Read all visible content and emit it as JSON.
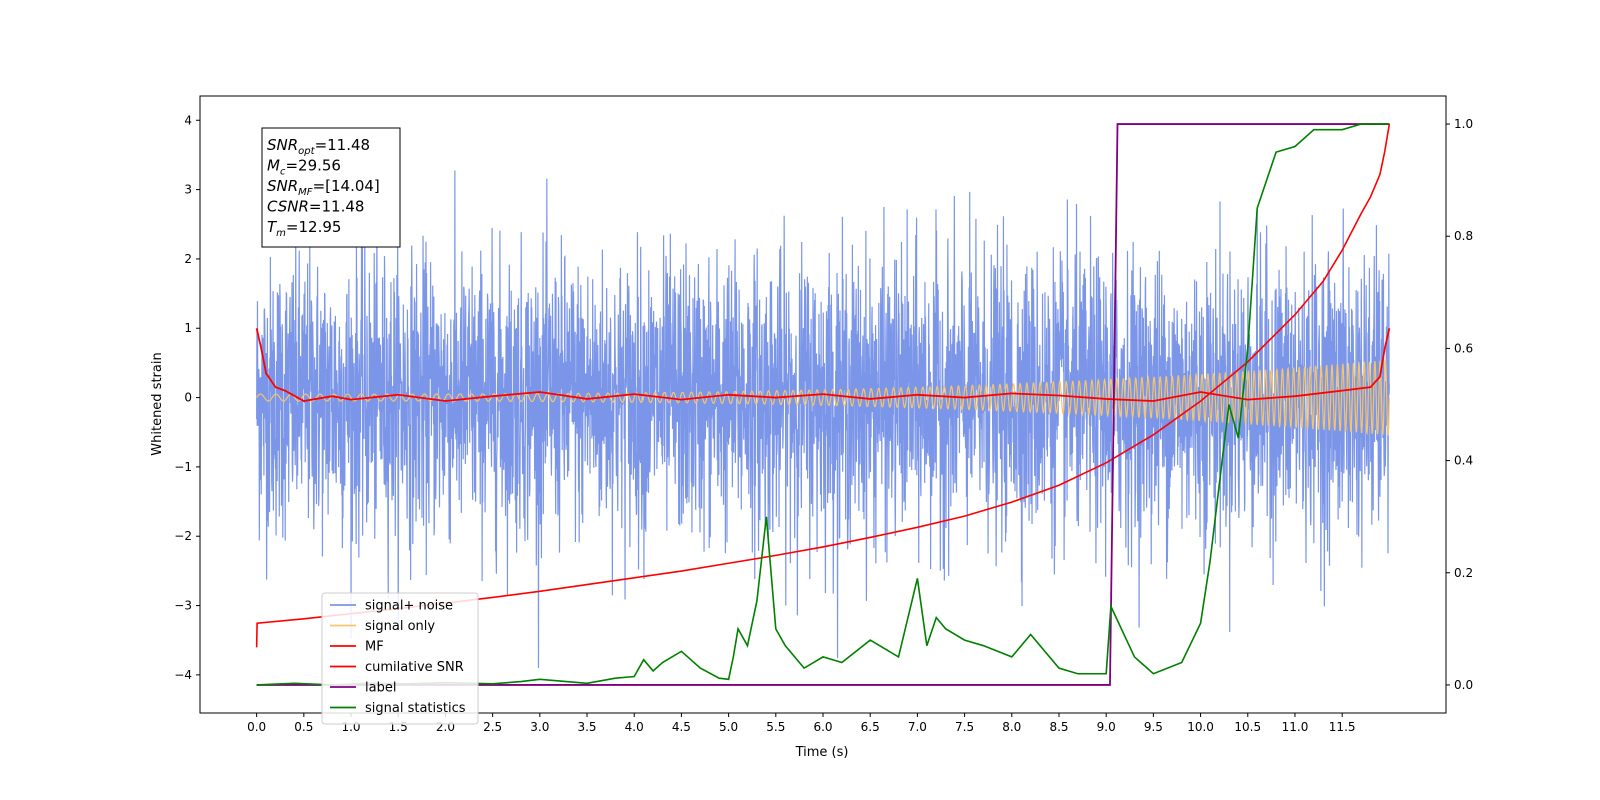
{
  "chart_data": {
    "type": "line",
    "xlabel": "Time (s)",
    "ylabel": "Whitened strain",
    "xlim": [
      -0.6,
      12.6
    ],
    "ylim_left": [
      -4.55,
      4.35
    ],
    "ylim_right": [
      -0.05,
      1.05
    ],
    "x_ticks": [
      0.0,
      0.5,
      1.0,
      1.5,
      2.0,
      2.5,
      3.0,
      3.5,
      4.0,
      4.5,
      5.0,
      5.5,
      6.0,
      6.5,
      7.0,
      7.5,
      8.0,
      8.5,
      9.0,
      9.5,
      10.0,
      10.5,
      11.0,
      11.5
    ],
    "x_tick_labels": [
      "0.0",
      "0.5",
      "1.0",
      "1.5",
      "2.0",
      "2.5",
      "3.0",
      "3.5",
      "4.0",
      "4.5",
      "5.0",
      "5.5",
      "6.0",
      "6.5",
      "7.0",
      "7.5",
      "8.0",
      "8.5",
      "9.0",
      "9.5",
      "10.0",
      "10.5",
      "11.0",
      "11.5"
    ],
    "y_ticks_left": [
      4,
      3,
      2,
      1,
      0,
      -1,
      -2,
      -3,
      -4
    ],
    "y_tick_labels_left": [
      "4",
      "3",
      "2",
      "1",
      "0",
      "−1",
      "−2",
      "−3",
      "−4"
    ],
    "y_ticks_right": [
      1.0,
      0.8,
      0.6,
      0.4,
      0.2,
      0.0
    ],
    "y_tick_labels_right": [
      "1.0",
      "0.8",
      "0.6",
      "0.4",
      "0.2",
      "0.0"
    ],
    "grid": false,
    "legend_placement": "lower-left",
    "annotation_lines": [
      {
        "sym": "SNR",
        "sub": "opt",
        "val": "=11.48"
      },
      {
        "sym": "M",
        "sub": "c",
        "val": "=29.56"
      },
      {
        "sym": "SNR",
        "sub": "MF",
        "val": "=[14.04]"
      },
      {
        "sym": "CSNR",
        "sub": "",
        "val": "=11.48"
      },
      {
        "sym": "T",
        "sub": "m",
        "val": "=12.95"
      }
    ],
    "series": [
      {
        "name": "signal+ noise",
        "axis": "left",
        "color": "#7b96e8",
        "style": "noise band, roughly within ±2.5 with spikes to ±3.9, t = 0.0–12.0 s"
      },
      {
        "name": "signal only",
        "axis": "left",
        "color": "#f5c46b",
        "style": "chirp oscillation, amplitude growing from ~0.05 to ~0.55 at t = 12.0 s"
      },
      {
        "name": "MF",
        "axis": "left",
        "color": "#ff0000",
        "x": [
          0.0,
          0.05,
          0.1,
          0.2,
          0.3,
          0.5,
          0.8,
          1.0,
          1.5,
          2.0,
          2.5,
          3.0,
          3.5,
          4.0,
          4.5,
          5.0,
          5.5,
          6.0,
          6.5,
          7.0,
          7.5,
          8.0,
          8.5,
          9.0,
          9.5,
          10.0,
          10.5,
          11.0,
          11.5,
          11.8,
          11.9,
          11.95,
          12.0
        ],
        "y": [
          1.0,
          0.7,
          0.35,
          0.15,
          0.1,
          -0.05,
          0.02,
          -0.03,
          0.04,
          -0.05,
          0.02,
          0.08,
          -0.02,
          0.05,
          -0.03,
          0.04,
          0.0,
          0.05,
          -0.02,
          0.04,
          0.0,
          0.06,
          0.03,
          -0.02,
          -0.05,
          0.08,
          -0.03,
          0.02,
          0.1,
          0.15,
          0.3,
          0.7,
          1.0
        ]
      },
      {
        "name": "cumilative SNR",
        "axis": "right",
        "color": "#ff0000",
        "x": [
          0.0,
          0.005,
          0.5,
          1.0,
          1.5,
          2.0,
          2.5,
          3.0,
          3.5,
          4.0,
          4.5,
          5.0,
          5.5,
          6.0,
          6.5,
          7.0,
          7.5,
          8.0,
          8.5,
          9.0,
          9.5,
          10.0,
          10.5,
          11.0,
          11.3,
          11.5,
          11.7,
          11.8,
          11.9,
          11.95,
          12.0
        ],
        "y": [
          0.067,
          0.11,
          0.118,
          0.127,
          0.136,
          0.146,
          0.156,
          0.167,
          0.179,
          0.191,
          0.203,
          0.217,
          0.231,
          0.246,
          0.263,
          0.281,
          0.301,
          0.326,
          0.356,
          0.396,
          0.446,
          0.506,
          0.576,
          0.66,
          0.72,
          0.775,
          0.84,
          0.87,
          0.91,
          0.95,
          1.0
        ]
      },
      {
        "name": "label",
        "axis": "right",
        "color": "#800080",
        "x": [
          0.0,
          9.04,
          9.12,
          12.0
        ],
        "y": [
          0.0,
          0.0,
          1.0,
          1.0
        ]
      },
      {
        "name": "signal statistics",
        "axis": "right",
        "color": "#008000",
        "x": [
          0.0,
          0.4,
          0.8,
          1.2,
          1.6,
          2.0,
          2.5,
          2.8,
          3.0,
          3.5,
          3.8,
          4.0,
          4.1,
          4.2,
          4.3,
          4.5,
          4.7,
          4.9,
          5.0,
          5.05,
          5.1,
          5.2,
          5.3,
          5.4,
          5.5,
          5.6,
          5.8,
          6.0,
          6.2,
          6.5,
          6.8,
          7.0,
          7.1,
          7.2,
          7.3,
          7.5,
          7.7,
          8.0,
          8.2,
          8.5,
          8.7,
          9.0,
          9.05,
          9.3,
          9.5,
          9.8,
          10.0,
          10.1,
          10.3,
          10.4,
          10.5,
          10.6,
          10.7,
          10.8,
          11.0,
          11.2,
          11.5,
          11.7,
          11.9,
          12.0
        ],
        "y": [
          0.0,
          0.003,
          0.0,
          0.003,
          0.002,
          0.004,
          0.002,
          0.006,
          0.01,
          0.003,
          0.012,
          0.015,
          0.045,
          0.025,
          0.04,
          0.06,
          0.03,
          0.012,
          0.01,
          0.05,
          0.1,
          0.07,
          0.15,
          0.3,
          0.1,
          0.07,
          0.03,
          0.05,
          0.04,
          0.08,
          0.05,
          0.19,
          0.07,
          0.12,
          0.1,
          0.08,
          0.07,
          0.05,
          0.09,
          0.03,
          0.02,
          0.02,
          0.14,
          0.05,
          0.02,
          0.04,
          0.11,
          0.22,
          0.5,
          0.44,
          0.6,
          0.85,
          0.9,
          0.95,
          0.96,
          0.99,
          0.99,
          1.0,
          1.0,
          1.0
        ]
      }
    ]
  }
}
